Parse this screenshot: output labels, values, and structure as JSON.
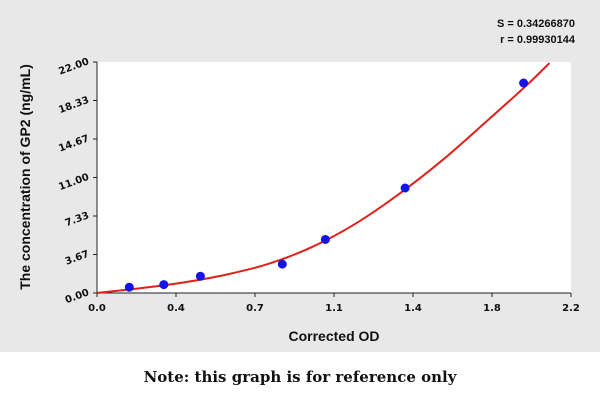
{
  "chart_data": {
    "type": "scatter",
    "xlabel": "Corrected OD",
    "ylabel": "The concentration of GP2 (ng/mL)",
    "xlim": [
      0.0,
      2.2
    ],
    "ylim": [
      0.0,
      22.0
    ],
    "x_ticks": [
      "0.0",
      "0.4",
      "0.7",
      "1.1",
      "1.4",
      "1.8",
      "2.2"
    ],
    "y_ticks": [
      "0.00",
      "3.67",
      "7.33",
      "11.00",
      "14.67",
      "18.33",
      "22.00"
    ],
    "stats": [
      "S = 0.34266870",
      "r = 0.99930144"
    ],
    "grid": false,
    "points": [
      {
        "x": 0.15,
        "y": 0.55
      },
      {
        "x": 0.31,
        "y": 0.8
      },
      {
        "x": 0.48,
        "y": 1.6
      },
      {
        "x": 0.86,
        "y": 2.75
      },
      {
        "x": 1.06,
        "y": 5.1
      },
      {
        "x": 1.43,
        "y": 10.0
      },
      {
        "x": 1.98,
        "y": 20.0
      }
    ],
    "fit_curve": {
      "color": "#e0201a",
      "x": [
        0.0,
        0.2,
        0.4,
        0.6,
        0.8,
        1.0,
        1.2,
        1.4,
        1.6,
        1.8,
        2.0,
        2.1
      ],
      "y": [
        0.0,
        0.45,
        1.0,
        1.75,
        2.8,
        4.4,
        6.6,
        9.4,
        12.6,
        16.2,
        19.9,
        21.9
      ]
    },
    "point_color": "#1414e6"
  },
  "note": "Note: this graph is for reference only"
}
